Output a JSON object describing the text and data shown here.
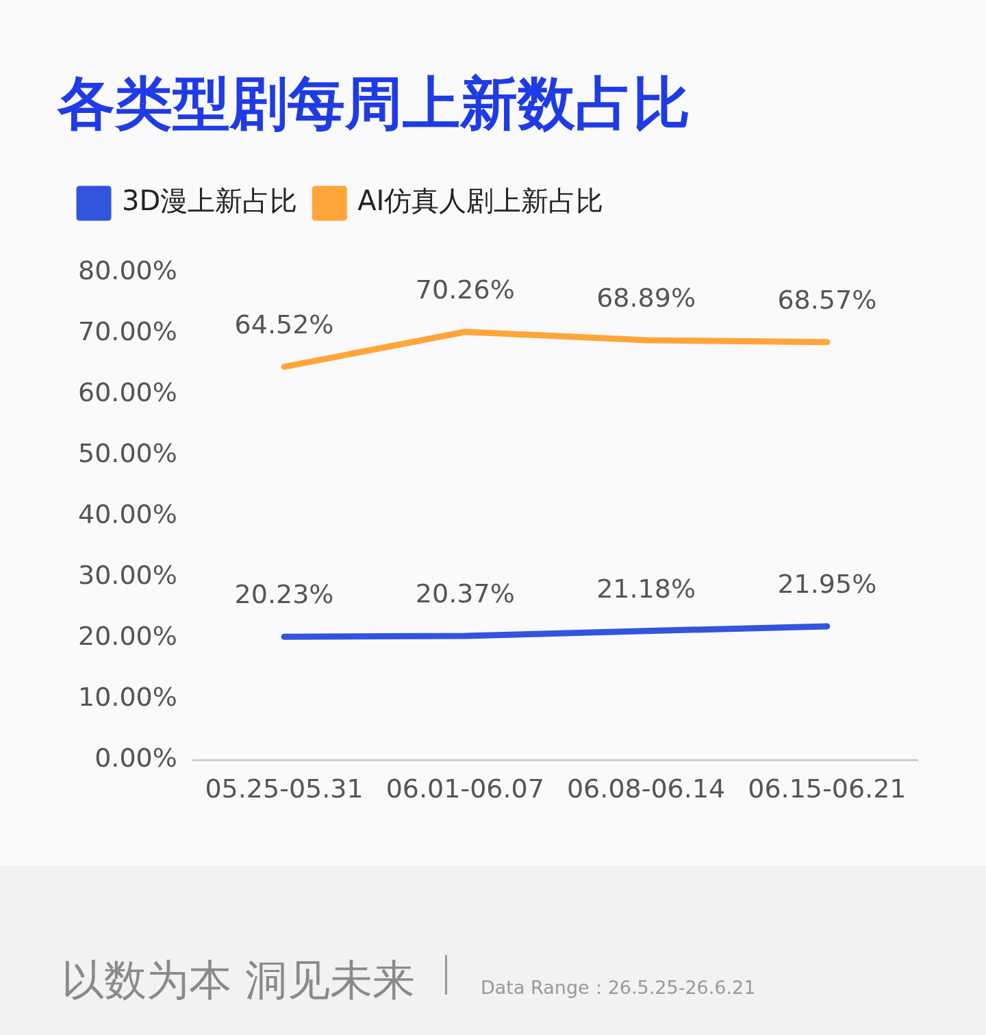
{
  "chart_data": {
    "type": "line",
    "title": "各类型剧每周上新数占比",
    "categories": [
      "05.25-05.31",
      "06.01-06.07",
      "06.08-06.14",
      "06.15-06.21"
    ],
    "series": [
      {
        "name": "3D漫上新占比",
        "color": "#3355dd",
        "values": [
          20.23,
          20.37,
          21.18,
          21.95
        ],
        "value_labels": [
          "20.23%",
          "20.37%",
          "21.18%",
          "21.95%"
        ]
      },
      {
        "name": "AI仿真人剧上新占比",
        "color": "#ffa53a",
        "values": [
          64.52,
          70.26,
          68.89,
          68.57
        ],
        "value_labels": [
          "64.52%",
          "70.26%",
          "68.89%",
          "68.57%"
        ]
      }
    ],
    "ylim": [
      0,
      80
    ],
    "yticks": [
      {
        "value": 0,
        "label": "0.00%"
      },
      {
        "value": 10,
        "label": "10.00%"
      },
      {
        "value": 20,
        "label": "20.00%"
      },
      {
        "value": 30,
        "label": "30.00%"
      },
      {
        "value": 40,
        "label": "40.00%"
      },
      {
        "value": 50,
        "label": "50.00%"
      },
      {
        "value": 60,
        "label": "60.00%"
      },
      {
        "value": 70,
        "label": "70.00%"
      },
      {
        "value": 80,
        "label": "80.00%"
      }
    ],
    "grid": false,
    "legend": "top left",
    "marker": "none",
    "line_style": "solid",
    "annotations": [
      "以数为本 洞见未来",
      "Data Range：26.5.25-26.6.21"
    ]
  }
}
